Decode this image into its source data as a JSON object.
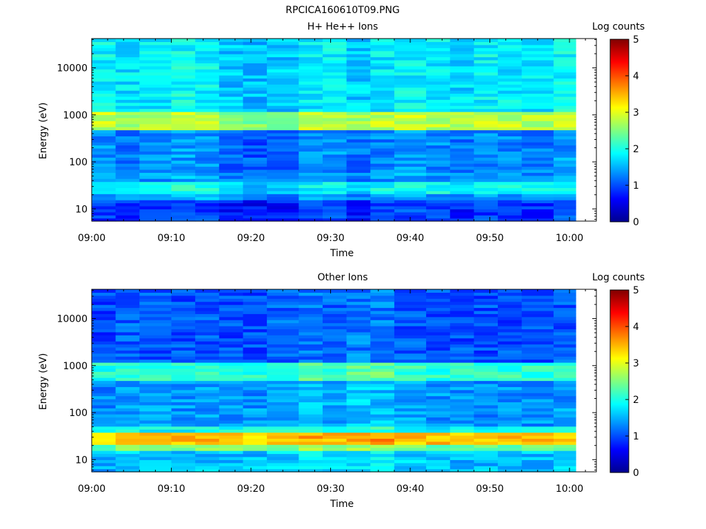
{
  "figure": {
    "title": "RPCICA160610T09.PNG"
  },
  "chart_data": [
    {
      "type": "heatmap",
      "title": "H+ He++ Ions",
      "xlabel": "Time",
      "ylabel": "Energy (eV)",
      "x_ticks": [
        "09:00",
        "09:10",
        "09:20",
        "09:30",
        "09:40",
        "09:50",
        "10:00"
      ],
      "x_range": [
        "09:00",
        "10:04"
      ],
      "y_scale": "log",
      "y_ticks": [
        "10",
        "100",
        "1000",
        "10000"
      ],
      "y_range": [
        5.5,
        42000
      ],
      "time_bins": [
        "09:00",
        "09:03",
        "09:06",
        "09:10",
        "09:13",
        "09:16",
        "09:19",
        "09:22",
        "09:26",
        "09:29",
        "09:32",
        "09:35",
        "09:38",
        "09:42",
        "09:45",
        "09:48",
        "09:51",
        "09:54",
        "09:58"
      ],
      "colorbar": {
        "label": "Log counts",
        "ticks": [
          "0",
          "1",
          "2",
          "3",
          "4",
          "5"
        ],
        "range": [
          0,
          5
        ]
      },
      "profile": {
        "description_levels": "approximate log-count level by energy band",
        "bands": [
          {
            "energy_low": 5.5,
            "energy_high": 16,
            "level": 0.9
          },
          {
            "energy_low": 16,
            "energy_high": 22,
            "level": 1.4
          },
          {
            "energy_low": 22,
            "energy_high": 38,
            "level": 1.9
          },
          {
            "energy_low": 38,
            "energy_high": 60,
            "level": 1.4
          },
          {
            "energy_low": 60,
            "energy_high": 450,
            "level": 1.3
          },
          {
            "energy_low": 450,
            "energy_high": 1150,
            "level": 2.8
          },
          {
            "energy_low": 1150,
            "energy_high": 42000,
            "level": 1.8
          }
        ],
        "column_offsets": [
          0.05,
          -0.05,
          0.0,
          0.1,
          0.05,
          -0.2,
          -0.25,
          -0.2,
          0.0,
          0.05,
          -0.15,
          0.0,
          0.05,
          0.0,
          -0.1,
          0.05,
          0.0,
          -0.05,
          0.1
        ]
      }
    },
    {
      "type": "heatmap",
      "title": "Other Ions",
      "xlabel": "Time",
      "ylabel": "Energy (eV)",
      "x_ticks": [
        "09:00",
        "09:10",
        "09:20",
        "09:30",
        "09:40",
        "09:50",
        "10:00"
      ],
      "x_range": [
        "09:00",
        "10:04"
      ],
      "y_scale": "log",
      "y_ticks": [
        "10",
        "100",
        "1000",
        "10000"
      ],
      "y_range": [
        5.5,
        42000
      ],
      "time_bins": [
        "09:00",
        "09:03",
        "09:06",
        "09:10",
        "09:13",
        "09:16",
        "09:19",
        "09:22",
        "09:26",
        "09:29",
        "09:32",
        "09:35",
        "09:38",
        "09:42",
        "09:45",
        "09:48",
        "09:51",
        "09:54",
        "09:58"
      ],
      "colorbar": {
        "label": "Log counts",
        "ticks": [
          "0",
          "1",
          "2",
          "3",
          "4",
          "5"
        ],
        "range": [
          0,
          5
        ]
      },
      "profile": {
        "description_levels": "approximate log-count level by energy band",
        "bands": [
          {
            "energy_low": 5.5,
            "energy_high": 16,
            "level": 1.55
          },
          {
            "energy_low": 16,
            "energy_high": 22,
            "level": 2.4
          },
          {
            "energy_low": 22,
            "energy_high": 38,
            "level": 3.4
          },
          {
            "energy_low": 38,
            "energy_high": 55,
            "level": 1.9
          },
          {
            "energy_low": 55,
            "energy_high": 450,
            "level": 1.35
          },
          {
            "energy_low": 450,
            "energy_high": 1150,
            "level": 2.1
          },
          {
            "energy_low": 1150,
            "energy_high": 42000,
            "level": 1.0
          }
        ],
        "column_offsets": [
          -0.05,
          0.1,
          0.05,
          0.0,
          0.05,
          0.0,
          0.0,
          0.1,
          0.2,
          0.1,
          0.25,
          0.25,
          0.05,
          0.0,
          0.0,
          0.0,
          0.0,
          0.0,
          0.05
        ]
      }
    }
  ]
}
